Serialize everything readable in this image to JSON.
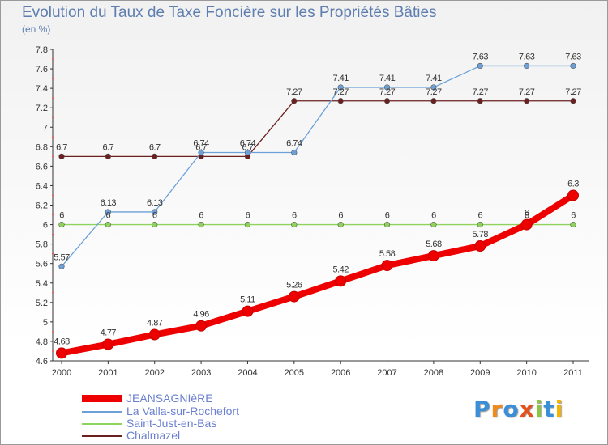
{
  "title": "Evolution du Taux de Taxe Foncière sur les Propriétés Bâties",
  "subtitle": "(en %)",
  "logo": "Proxiti",
  "chart_data": {
    "type": "line",
    "title": "Evolution du Taux de Taxe Foncière sur les Propriétés Bâties",
    "ylabel": "(en %)",
    "xlabel": "",
    "ylim": [
      4.6,
      7.8
    ],
    "grid": false,
    "x": [
      "2000",
      "2001",
      "2002",
      "2003",
      "2004",
      "2005",
      "2006",
      "2007",
      "2008",
      "2009",
      "2010",
      "2011"
    ],
    "yticks": [
      "4.6",
      "4.8",
      "5",
      "5.2",
      "5.4",
      "5.6",
      "5.8",
      "6",
      "6.2",
      "6.4",
      "6.6",
      "6.8",
      "7",
      "7.2",
      "7.4",
      "7.6",
      "7.8"
    ],
    "series": [
      {
        "name": "Chalmazel",
        "color": "#6b1f1f",
        "values": [
          6.7,
          6.7,
          6.7,
          6.7,
          6.7,
          7.27,
          7.27,
          7.27,
          7.27,
          7.27,
          7.27,
          7.27
        ],
        "labels": [
          "6.7",
          "6.7",
          "6.7",
          "6.7",
          "6.7",
          "7.27",
          "7.27",
          "7.27",
          "7.27",
          "7.27",
          "7.27",
          "7.27"
        ]
      },
      {
        "name": "Saint-Just-en-Bas",
        "color": "#8fd45a",
        "values": [
          6,
          6,
          6,
          6,
          6,
          6,
          6,
          6,
          6,
          6,
          6,
          6
        ],
        "labels": [
          "6",
          "6",
          "6",
          "6",
          "6",
          "6",
          "6",
          "6",
          "6",
          "6",
          "6",
          "6"
        ]
      },
      {
        "name": "La Valla-sur-Rochefort",
        "color": "#6ba1d8",
        "values": [
          5.57,
          6.13,
          6.13,
          6.74,
          6.74,
          6.74,
          7.41,
          7.41,
          7.41,
          7.63,
          7.63,
          7.63
        ],
        "labels": [
          "5.57",
          "6.13",
          "6.13",
          "6.74",
          "6.74",
          "6.74",
          "7.41",
          "7.41",
          "7.41",
          "7.63",
          "7.63",
          "7.63"
        ]
      },
      {
        "name": "JEANSAGNIèRE",
        "color": "#ee0000",
        "values": [
          4.68,
          4.77,
          4.87,
          4.96,
          5.11,
          5.26,
          5.42,
          5.58,
          5.68,
          5.78,
          6,
          6.3
        ],
        "labels": [
          "4.68",
          "4.77",
          "4.87",
          "4.96",
          "5.11",
          "5.26",
          "5.42",
          "5.58",
          "5.68",
          "5.78",
          "6",
          "6.3"
        ]
      }
    ]
  },
  "legend": [
    {
      "name": "JEANSAGNIèRE",
      "color": "#ee0000"
    },
    {
      "name": "La Valla-sur-Rochefort",
      "color": "#6ba1d8"
    },
    {
      "name": "Saint-Just-en-Bas",
      "color": "#8fd45a"
    },
    {
      "name": "Chalmazel",
      "color": "#6b1f1f"
    }
  ]
}
